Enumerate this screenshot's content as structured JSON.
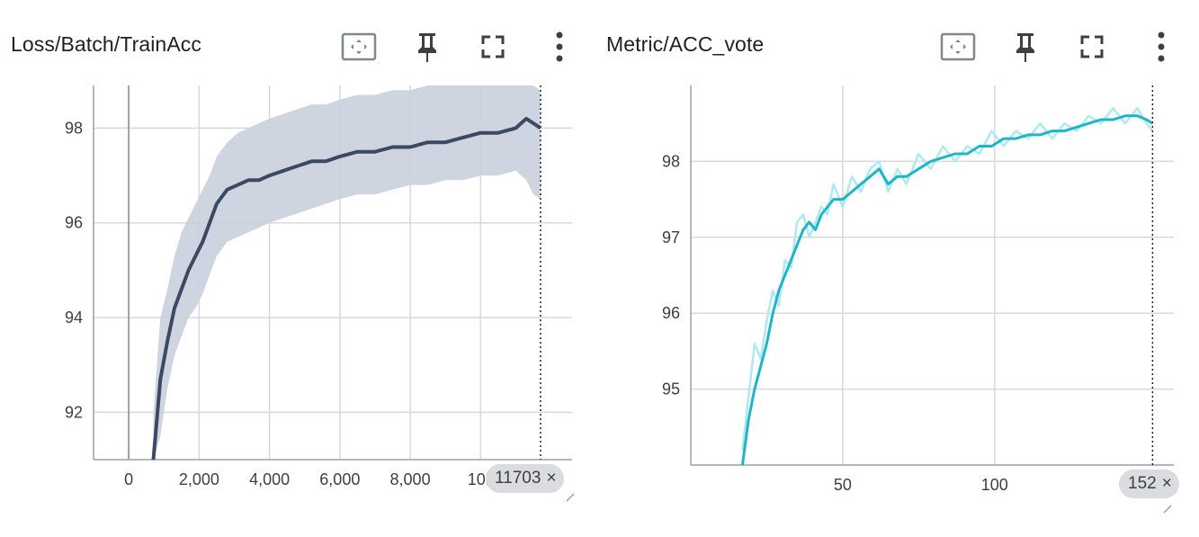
{
  "icons": {
    "fit": "fit-to-domain-icon",
    "pin": "pin-icon",
    "fullscreen": "fullscreen-icon",
    "more": "more-vert-icon",
    "close": "close-icon",
    "resize": "resize-handle-icon"
  },
  "colors": {
    "left_smoothed": "#3b4a63",
    "left_raw": "#c9d0de",
    "right_smoothed": "#1fb5c6",
    "right_raw": "#aee9f1",
    "grid": "#d8d8d8",
    "chip": "#dadce0"
  },
  "cards": [
    {
      "title": "Loss/Batch/TrainAcc",
      "step_chip": "11703",
      "close_glyph": "×"
    },
    {
      "title": "Metric/ACC_vote",
      "step_chip": "152",
      "close_glyph": "×"
    }
  ],
  "chart_data": [
    {
      "type": "line",
      "title": "Loss/Batch/TrainAcc",
      "x_ticks": [
        0,
        2000,
        4000,
        6000,
        8000,
        10000
      ],
      "x_tick_labels": [
        "0",
        "2,000",
        "4,000",
        "6,000",
        "8,000",
        "10k"
      ],
      "y_ticks": [
        92,
        94,
        96,
        98
      ],
      "y_tick_labels": [
        "92",
        "94",
        "96",
        "98"
      ],
      "xlim": [
        -1000,
        12600
      ],
      "ylim": [
        91,
        98.9
      ],
      "grid": true,
      "cursor_step": 11703,
      "series": [
        {
          "role": "smoothed",
          "x": [
            700,
            900,
            1100,
            1300,
            1500,
            1700,
            1900,
            2100,
            2300,
            2500,
            2800,
            3100,
            3400,
            3700,
            4000,
            4400,
            4800,
            5200,
            5600,
            6000,
            6500,
            7000,
            7500,
            8000,
            8500,
            9000,
            9500,
            10000,
            10500,
            11000,
            11300,
            11500,
            11703
          ],
          "y": [
            91.0,
            92.7,
            93.5,
            94.2,
            94.6,
            95.0,
            95.3,
            95.6,
            96.0,
            96.4,
            96.7,
            96.8,
            96.9,
            96.9,
            97.0,
            97.1,
            97.2,
            97.3,
            97.3,
            97.4,
            97.5,
            97.5,
            97.6,
            97.6,
            97.7,
            97.7,
            97.8,
            97.9,
            97.9,
            98.0,
            98.2,
            98.1,
            98.0
          ]
        },
        {
          "role": "raw",
          "x": [
            700,
            900,
            1100,
            1300,
            1500,
            1700,
            1900,
            2100,
            2300,
            2500,
            2800,
            3100,
            3400,
            3700,
            4000,
            4400,
            4800,
            5200,
            5600,
            6000,
            6500,
            7000,
            7500,
            8000,
            8500,
            9000,
            9500,
            10000,
            10500,
            11000,
            11300,
            11500,
            11703
          ],
          "low": [
            91.0,
            91.5,
            92.5,
            93.2,
            93.6,
            94.0,
            94.2,
            94.5,
            94.9,
            95.3,
            95.6,
            95.7,
            95.8,
            95.9,
            96.0,
            96.1,
            96.2,
            96.3,
            96.4,
            96.5,
            96.6,
            96.6,
            96.7,
            96.8,
            96.8,
            96.9,
            96.9,
            97.0,
            97.0,
            97.1,
            96.9,
            96.6,
            96.5
          ],
          "high": [
            92.0,
            94.0,
            94.6,
            95.3,
            95.8,
            96.1,
            96.4,
            96.7,
            97.0,
            97.4,
            97.7,
            97.9,
            98.0,
            98.1,
            98.2,
            98.3,
            98.4,
            98.5,
            98.5,
            98.6,
            98.7,
            98.7,
            98.8,
            98.8,
            98.9,
            98.9,
            98.9,
            98.9,
            98.9,
            98.9,
            98.9,
            98.9,
            98.8
          ]
        }
      ]
    },
    {
      "type": "line",
      "title": "Metric/ACC_vote",
      "x_ticks": [
        50,
        100
      ],
      "x_tick_labels": [
        "50",
        "100"
      ],
      "y_ticks": [
        95,
        96,
        97,
        98
      ],
      "y_tick_labels": [
        "95",
        "96",
        "97",
        "98"
      ],
      "xlim": [
        0,
        159
      ],
      "ylim": [
        94,
        99
      ],
      "grid": true,
      "cursor_step": 152,
      "series": [
        {
          "role": "smoothed",
          "x": [
            17,
            19,
            21,
            23,
            25,
            27,
            29,
            31,
            33,
            35,
            37,
            39,
            41,
            43,
            45,
            47,
            50,
            53,
            56,
            59,
            62,
            65,
            68,
            71,
            75,
            79,
            83,
            87,
            91,
            95,
            99,
            103,
            107,
            111,
            115,
            119,
            123,
            127,
            131,
            135,
            139,
            143,
            147,
            150,
            152
          ],
          "y": [
            94.0,
            94.6,
            95.0,
            95.3,
            95.6,
            96.0,
            96.3,
            96.5,
            96.7,
            96.9,
            97.1,
            97.2,
            97.1,
            97.3,
            97.4,
            97.5,
            97.5,
            97.6,
            97.7,
            97.8,
            97.9,
            97.7,
            97.8,
            97.8,
            97.9,
            98.0,
            98.05,
            98.1,
            98.1,
            98.2,
            98.2,
            98.3,
            98.3,
            98.35,
            98.35,
            98.4,
            98.4,
            98.45,
            98.5,
            98.55,
            98.55,
            98.6,
            98.6,
            98.55,
            98.5
          ]
        },
        {
          "role": "raw",
          "x": [
            17,
            19,
            21,
            23,
            25,
            27,
            29,
            31,
            33,
            35,
            37,
            39,
            41,
            43,
            45,
            47,
            50,
            53,
            56,
            59,
            62,
            65,
            68,
            71,
            75,
            79,
            83,
            87,
            91,
            95,
            99,
            103,
            107,
            111,
            115,
            119,
            123,
            127,
            131,
            135,
            139,
            143,
            147,
            150,
            152
          ],
          "y": [
            94.2,
            94.9,
            95.6,
            95.4,
            95.9,
            96.3,
            96.1,
            96.7,
            96.6,
            97.2,
            97.3,
            97.0,
            97.2,
            97.4,
            97.3,
            97.7,
            97.4,
            97.8,
            97.6,
            97.9,
            98.0,
            97.6,
            97.9,
            97.7,
            98.1,
            97.9,
            98.2,
            98.0,
            98.2,
            98.1,
            98.4,
            98.2,
            98.4,
            98.3,
            98.5,
            98.3,
            98.5,
            98.4,
            98.6,
            98.5,
            98.7,
            98.5,
            98.7,
            98.5,
            98.4
          ]
        }
      ]
    }
  ]
}
